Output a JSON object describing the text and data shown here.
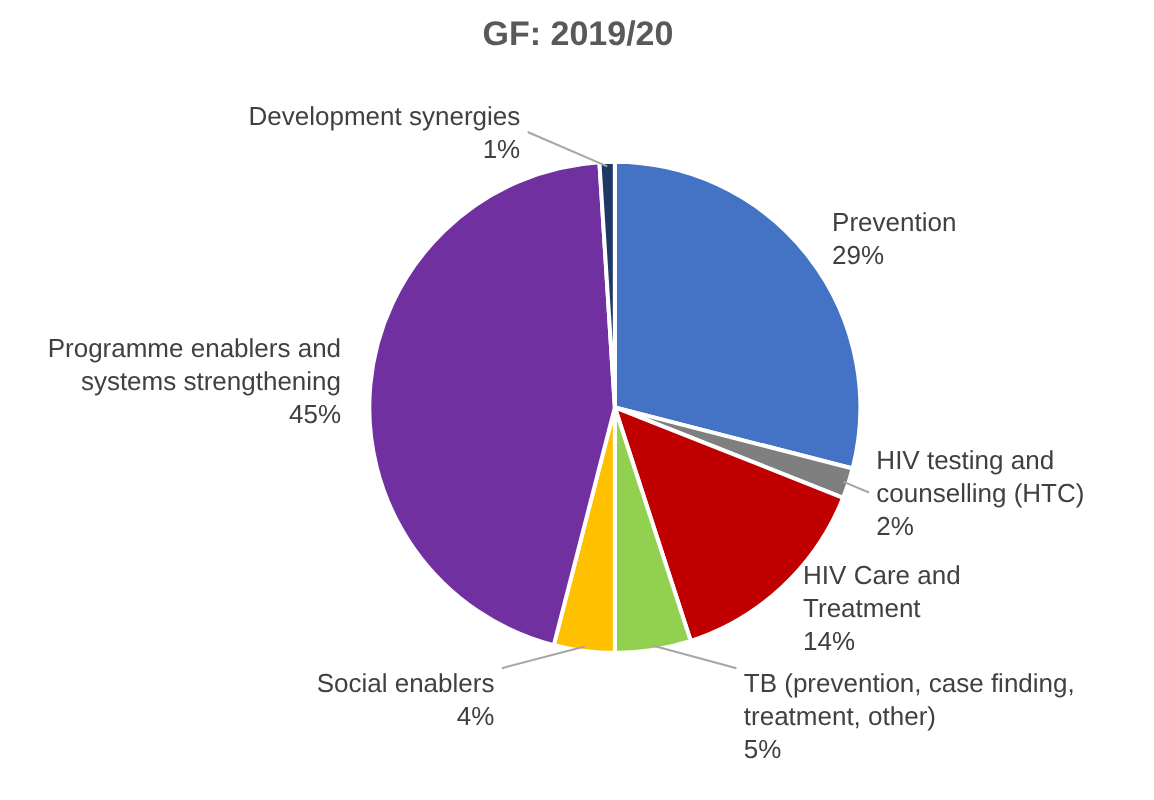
{
  "chart_data": {
    "type": "pie",
    "title": "GF: 2019/20",
    "categories": [
      "Prevention",
      "HIV testing and counselling (HTC)",
      "HIV Care and Treatment",
      "TB (prevention, case finding, treatment, other)",
      "Social enablers",
      "Programme enablers and systems strengthening",
      "Development synergies"
    ],
    "values": [
      29,
      2,
      14,
      5,
      4,
      45,
      1
    ],
    "value_labels": [
      "29%",
      "2%",
      "14%",
      "5%",
      "4%",
      "45%",
      "1%"
    ],
    "colors": [
      "#4472c4",
      "#7f7f7f",
      "#c00000",
      "#92d050",
      "#ffc000",
      "#7030a0",
      "#1f3864"
    ]
  }
}
